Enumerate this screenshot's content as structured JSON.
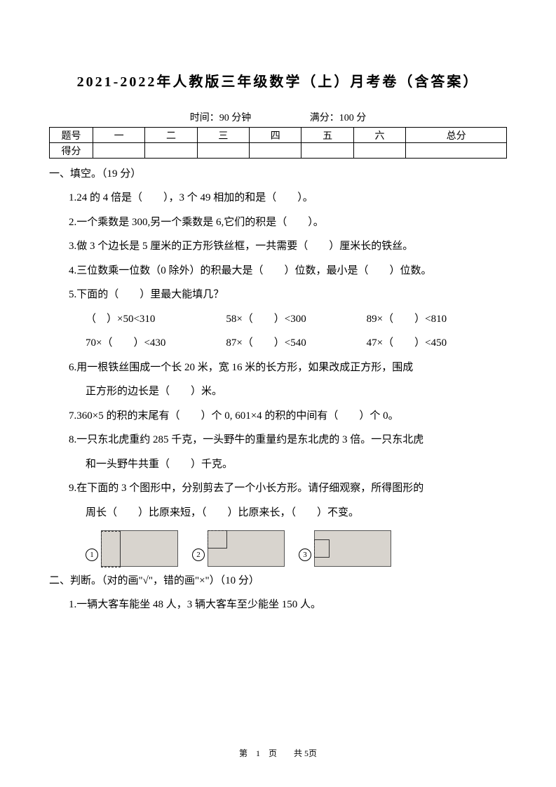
{
  "title": "2021-2022年人教版三年级数学（上）月考卷（含答案）",
  "meta": {
    "time_label": "时间：",
    "time_val": "90 分钟",
    "score_label": "满分：",
    "score_val": "100 分"
  },
  "table": {
    "r1": [
      "题号",
      "一",
      "二",
      "三",
      "四",
      "五",
      "六",
      "总分"
    ],
    "r2": [
      "得分",
      "",
      "",
      "",
      "",
      "",
      "",
      ""
    ]
  },
  "sec1": "一、填空。（19 分）",
  "q1": "1.24 的 4 倍是（　　），3 个 49 相加的和是（　　）。",
  "q2": "2.一个乘数是 300,另一个乘数是 6,它们的积是（　　）。",
  "q3": "3.做 3 个边长是 5 厘米的正方形铁丝框，一共需要（　　）厘米长的铁丝。",
  "q4": "4.三位数乘一位数（0 除外）的积最大是（　　）位数，最小是（　　）位数。",
  "q5": "5.下面的（　　）里最大能填几？",
  "q5a1": "（　）×50<310",
  "q5a2": "58×（　　）<300",
  "q5a3": "89×（　　）<810",
  "q5b1": "70×（　　）<430",
  "q5b2": "87×（　　）<540",
  "q5b3": "47×（　　）<450",
  "q6": "6.用一根铁丝围成一个长 20 米，宽 16 米的长方形，如果改成正方形，围成",
  "q6b": "正方形的边长是（　　）米。",
  "q7": "7.360×5 的积的末尾有（　　）个 0, 601×4 的积的中间有（　　）个 0。",
  "q8": "8.一只东北虎重约 285 千克，一头野牛的重量约是东北虎的 3 倍。一只东北虎",
  "q8b": "和一头野牛共重（　　）千克。",
  "q9": "9.在下面的 3 个图形中，分别剪去了一个小长方形。请仔细观察，所得图形的",
  "q9b": "周长（　　）比原来短，（　　）比原来长，（　　）不变。",
  "c1": "1",
  "c2": "2",
  "c3": "3",
  "sec2": "二、判断。（对的画\"√\"，错的画\"×\"）（10 分）",
  "j1": "1.一辆大客车能坐 48 人，3 辆大客车至少能坐 150 人。",
  "footer": "第　1　页　　共 5页",
  "colors": {
    "bg": "#ffffff",
    "text": "#000000",
    "shape_bg": "#d8d4ce",
    "border": "#000000"
  }
}
